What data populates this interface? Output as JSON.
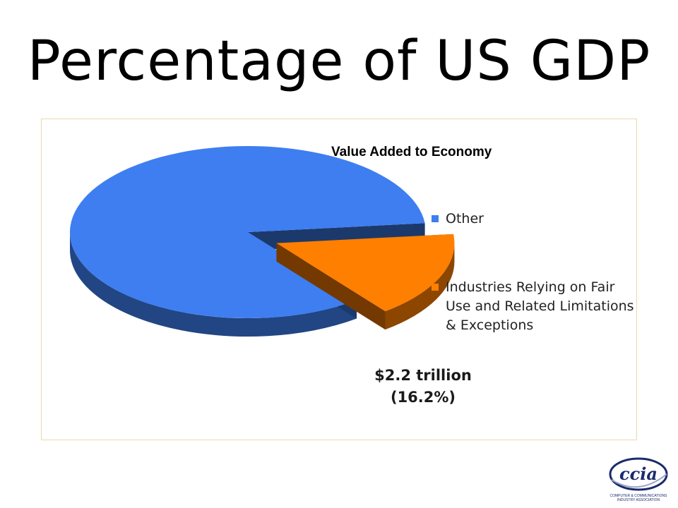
{
  "slide": {
    "title": "Percentage of US GDP"
  },
  "chart_data": {
    "type": "pie",
    "title": "Value Added to Economy",
    "categories": [
      "Other",
      "Industries Relying on Fair Use and Related Limitations & Exceptions"
    ],
    "values": [
      83.8,
      16.2
    ],
    "colors": [
      "#3e7ef0",
      "#ff7f00"
    ],
    "legend_placement": "right",
    "annotations": {
      "amount": "$2.2 trillion",
      "percent": "(16.2%)"
    }
  },
  "logo": {
    "text": "ccia",
    "caption": "COMPUTER & COMMUNICATIONS INDUSTRY ASSOCIATION"
  }
}
